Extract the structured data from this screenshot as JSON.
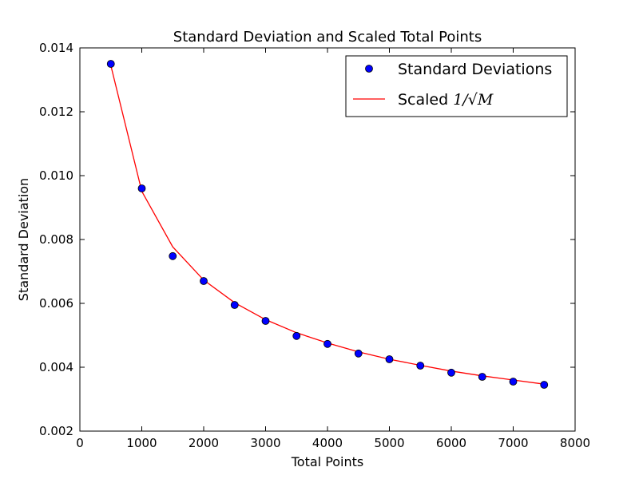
{
  "chart_data": {
    "type": "line",
    "title": "Standard Deviation and Scaled Total Points",
    "xlabel": "Total Points",
    "ylabel": "Standard Deviation",
    "xlim": [
      0,
      8000
    ],
    "ylim": [
      0.002,
      0.014
    ],
    "xticks": [
      0,
      1000,
      2000,
      3000,
      4000,
      5000,
      6000,
      7000,
      8000
    ],
    "xtick_labels": [
      "0",
      "1000",
      "2000",
      "3000",
      "4000",
      "5000",
      "6000",
      "7000",
      "8000"
    ],
    "yticks": [
      0.002,
      0.004,
      0.006,
      0.008,
      0.01,
      0.012,
      0.014
    ],
    "ytick_labels": [
      "0.002",
      "0.004",
      "0.006",
      "0.008",
      "0.010",
      "0.012",
      "0.014"
    ],
    "grid": false,
    "legend_position": "top-right",
    "series": [
      {
        "name": "Standard Deviations",
        "style": "markers",
        "color": "#0000ff",
        "x": [
          500,
          1000,
          1500,
          2000,
          2500,
          3000,
          3500,
          4000,
          4500,
          5000,
          5500,
          6000,
          6500,
          7000,
          7500
        ],
        "y": [
          0.0135,
          0.0096,
          0.00748,
          0.0067,
          0.00595,
          0.00545,
          0.00498,
          0.00473,
          0.00443,
          0.00425,
          0.00405,
          0.00383,
          0.0037,
          0.00355,
          0.00345
        ]
      },
      {
        "name": "Scaled 1/√M",
        "name_prefix": "Scaled ",
        "name_math": "1/√M",
        "style": "line",
        "color": "#ff0000",
        "x": [
          500,
          1000,
          1500,
          2000,
          2500,
          3000,
          3500,
          4000,
          4500,
          5000,
          5500,
          6000,
          6500,
          7000,
          7500
        ],
        "y": [
          0.01345,
          0.00951,
          0.00777,
          0.00673,
          0.00602,
          0.00549,
          0.00508,
          0.00476,
          0.00448,
          0.00425,
          0.00406,
          0.00388,
          0.00373,
          0.0036,
          0.00347
        ]
      }
    ]
  }
}
